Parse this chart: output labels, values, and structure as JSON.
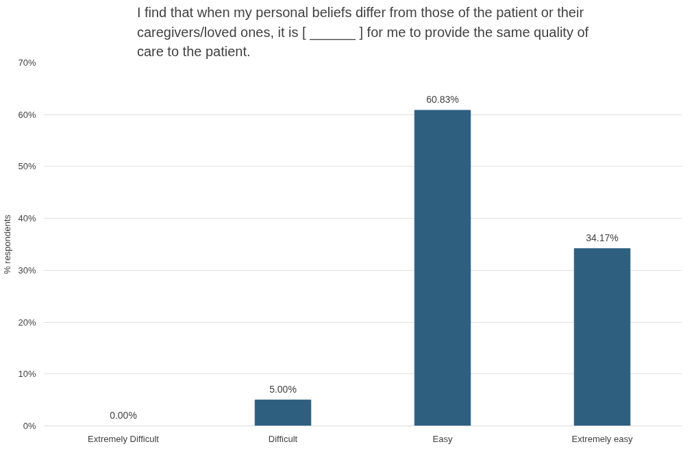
{
  "chart_data": {
    "type": "bar",
    "title": "I find that when my personal beliefs differ from those of the patient or their caregivers/loved ones, it is [ ______ ] for me to provide the same quality of care to the patient.",
    "ylabel": "% respondents",
    "categories": [
      "Extremely Difficult",
      "Difficult",
      "Easy",
      "Extremely easy"
    ],
    "values": [
      0,
      5,
      60.83,
      34.17
    ],
    "value_labels": [
      "0.00%",
      "5.00%",
      "60.83%",
      "34.17%"
    ],
    "color": "#2e5f7f",
    "ylim": [
      0,
      70
    ],
    "yticks": [
      {
        "value": 0,
        "label": "0%"
      },
      {
        "value": 10,
        "label": "10%"
      },
      {
        "value": 20,
        "label": "20%"
      },
      {
        "value": 30,
        "label": "30%"
      },
      {
        "value": 40,
        "label": "40%"
      },
      {
        "value": 50,
        "label": "50%"
      },
      {
        "value": 60,
        "label": "60%"
      },
      {
        "value": 70,
        "label": "70%"
      }
    ],
    "grid": "y"
  }
}
